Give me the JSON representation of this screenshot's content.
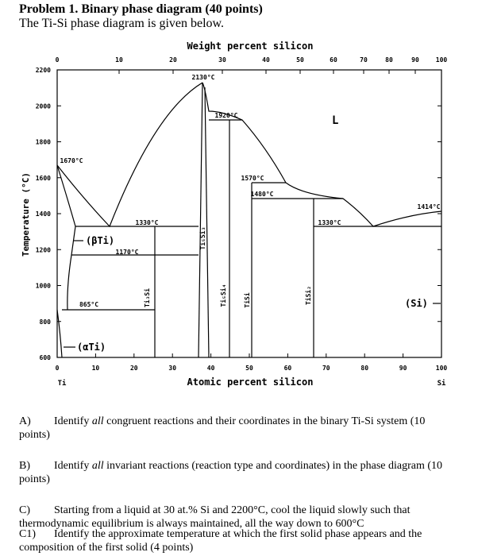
{
  "header": {
    "title": "Problem 1. Binary phase diagram (40 points)",
    "subtitle": "The Ti-Si phase diagram is given below."
  },
  "figure": {
    "top_axis_title": "Weight percent silicon",
    "top_ticks": [
      "0",
      "10",
      "20",
      "30",
      "40",
      "50",
      "60",
      "70",
      "80",
      "90",
      "100"
    ],
    "bottom_ticks": [
      "0",
      "10",
      "20",
      "30",
      "40",
      "50",
      "60",
      "70",
      "80",
      "90",
      "100"
    ],
    "bottom_axis_title": "Atomic percent silicon",
    "left_ticks": [
      "2200",
      "2000",
      "1800",
      "1600",
      "1400",
      "1200",
      "1000",
      "800",
      "600"
    ],
    "left_axis_title": "Temperature (°C)",
    "left_element": "Ti",
    "right_element": "Si",
    "temperatures": [
      "2130°C",
      "1920°C",
      "1670°C",
      "1570°C",
      "1480°C",
      "1414°C",
      "1330°C",
      "1330°C",
      "1170°C",
      "865°C"
    ],
    "region_labels": [
      "L",
      "(βTi)",
      "(αTi)",
      "(Si)"
    ],
    "phases": [
      "Ti₃Si",
      "Ti₅Si₃",
      "Ti₅Si₄",
      "TiSi",
      "TiSi₂"
    ]
  },
  "questions": [
    {
      "label": "A)",
      "before": "Identify ",
      "em": "all",
      "after": " congruent reactions and their coordinates in the binary Ti-Si system (10 points)"
    },
    {
      "label": "B)",
      "before": "Identify ",
      "em": "all",
      "after": " invariant reactions (reaction type and coordinates) in the phase diagram (10 points)"
    },
    {
      "label": "C)",
      "text": "Starting from a liquid at 30 at.% Si and 2200°C, cool the liquid slowly such that thermodynamic equilibrium is always maintained, all the way down to 600°C"
    },
    {
      "label": "C1)",
      "text": "Identify the approximate temperature at which the first solid phase appears and the composition of the first solid (4 points)"
    }
  ]
}
